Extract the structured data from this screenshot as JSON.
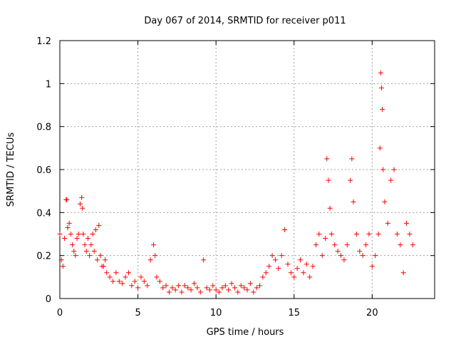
{
  "chart_data": {
    "type": "scatter",
    "title": "Day 067 of 2014, SRMTID for receiver p011",
    "xlabel": "GPS time / hours",
    "ylabel": "SRMTID / TECUs",
    "xlim": [
      0,
      24
    ],
    "ylim": [
      0,
      1.2
    ],
    "xticks": [
      0,
      5,
      10,
      15,
      20
    ],
    "yticks": [
      0,
      0.2,
      0.4,
      0.6,
      0.8,
      1,
      1.2
    ],
    "xtick_labels": [
      "0",
      "5",
      "10",
      "15",
      "20"
    ],
    "ytick_labels": [
      "0",
      "0.2",
      "0.4",
      "0.6",
      "0.8",
      "1",
      "1.2"
    ],
    "grid": true,
    "marker": "+",
    "color": "#ff0000",
    "series": [
      {
        "name": "SRMTID",
        "x": [
          0.0,
          0.1,
          0.2,
          0.3,
          0.4,
          0.45,
          0.5,
          0.6,
          0.7,
          0.8,
          0.9,
          1.0,
          1.1,
          1.2,
          1.3,
          1.4,
          1.45,
          1.5,
          1.6,
          1.7,
          1.8,
          1.9,
          2.0,
          2.1,
          2.2,
          2.3,
          2.4,
          2.5,
          2.6,
          2.7,
          2.8,
          2.9,
          3.0,
          3.2,
          3.4,
          3.6,
          3.8,
          4.0,
          4.2,
          4.4,
          4.6,
          4.8,
          5.0,
          5.2,
          5.4,
          5.6,
          5.8,
          6.0,
          6.1,
          6.2,
          6.4,
          6.6,
          6.8,
          7.0,
          7.2,
          7.4,
          7.6,
          7.8,
          8.0,
          8.2,
          8.4,
          8.6,
          8.8,
          9.0,
          9.2,
          9.4,
          9.6,
          9.8,
          10.0,
          10.2,
          10.4,
          10.6,
          10.8,
          11.0,
          11.2,
          11.4,
          11.6,
          11.8,
          12.0,
          12.2,
          12.4,
          12.6,
          12.8,
          13.0,
          13.2,
          13.4,
          13.6,
          13.8,
          14.0,
          14.2,
          14.4,
          14.6,
          14.8,
          15.0,
          15.2,
          15.4,
          15.6,
          15.8,
          16.0,
          16.2,
          16.4,
          16.6,
          16.8,
          17.0,
          17.1,
          17.2,
          17.3,
          17.4,
          17.6,
          17.8,
          18.0,
          18.2,
          18.4,
          18.6,
          18.7,
          18.8,
          19.0,
          19.2,
          19.4,
          19.6,
          19.8,
          20.0,
          20.2,
          20.4,
          20.5,
          20.55,
          20.6,
          20.65,
          20.7,
          20.8,
          21.0,
          21.2,
          21.4,
          21.6,
          21.8,
          22.0,
          22.2,
          22.4,
          22.6
        ],
        "y": [
          0.3,
          0.18,
          0.15,
          0.28,
          0.46,
          0.46,
          0.33,
          0.35,
          0.3,
          0.25,
          0.22,
          0.2,
          0.28,
          0.3,
          0.44,
          0.47,
          0.42,
          0.3,
          0.25,
          0.22,
          0.28,
          0.2,
          0.25,
          0.3,
          0.22,
          0.32,
          0.18,
          0.34,
          0.2,
          0.15,
          0.15,
          0.18,
          0.12,
          0.1,
          0.08,
          0.12,
          0.08,
          0.07,
          0.1,
          0.12,
          0.06,
          0.08,
          0.05,
          0.1,
          0.08,
          0.06,
          0.18,
          0.25,
          0.2,
          0.1,
          0.08,
          0.05,
          0.06,
          0.03,
          0.05,
          0.04,
          0.06,
          0.03,
          0.06,
          0.05,
          0.04,
          0.07,
          0.05,
          0.03,
          0.18,
          0.05,
          0.04,
          0.06,
          0.04,
          0.03,
          0.05,
          0.06,
          0.04,
          0.07,
          0.05,
          0.03,
          0.06,
          0.05,
          0.04,
          0.07,
          0.03,
          0.05,
          0.06,
          0.1,
          0.12,
          0.15,
          0.2,
          0.18,
          0.14,
          0.2,
          0.32,
          0.16,
          0.12,
          0.1,
          0.14,
          0.18,
          0.12,
          0.16,
          0.1,
          0.15,
          0.25,
          0.3,
          0.2,
          0.28,
          0.65,
          0.55,
          0.42,
          0.3,
          0.25,
          0.22,
          0.2,
          0.18,
          0.25,
          0.55,
          0.65,
          0.45,
          0.3,
          0.22,
          0.2,
          0.25,
          0.3,
          0.15,
          0.2,
          0.3,
          0.7,
          1.05,
          0.98,
          0.88,
          0.6,
          0.45,
          0.35,
          0.55,
          0.6,
          0.3,
          0.25,
          0.12,
          0.35,
          0.3,
          0.25
        ]
      }
    ]
  }
}
